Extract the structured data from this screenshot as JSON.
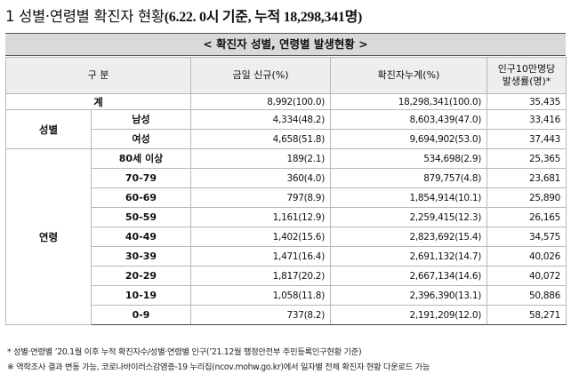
{
  "title": {
    "main": "1 성별·연령별 확진자 현황",
    "sub": "(6.22. 0시 기준, 누적 18,298,341명)"
  },
  "banner": "< 확진자 성별, 연령별 발생현황 >",
  "header": {
    "group": "구 분",
    "today": "금일 신규(%)",
    "cumulative": "확진자누계(%)",
    "rate": "인구10만명당 발생률(명)*"
  },
  "total": {
    "label": "계",
    "today": "8,992(100.0)",
    "cumulative": "18,298,341(100.0)",
    "rate": "35,435"
  },
  "sex": {
    "label": "성별",
    "rows": [
      {
        "label": "남성",
        "today": "4,334(48.2)",
        "cumulative": "8,603,439(47.0)",
        "rate": "33,416"
      },
      {
        "label": "여성",
        "today": "4,658(51.8)",
        "cumulative": "9,694,902(53.0)",
        "rate": "37,443"
      }
    ]
  },
  "age": {
    "label": "연령",
    "rows": [
      {
        "label": "80세 이상",
        "today": "189(2.1)",
        "cumulative": "534,698(2.9)",
        "rate": "25,365"
      },
      {
        "label": "70-79",
        "today": "360(4.0)",
        "cumulative": "879,757(4.8)",
        "rate": "23,681"
      },
      {
        "label": "60-69",
        "today": "797(8.9)",
        "cumulative": "1,854,914(10.1)",
        "rate": "25,890"
      },
      {
        "label": "50-59",
        "today": "1,161(12.9)",
        "cumulative": "2,259,415(12.3)",
        "rate": "26,165"
      },
      {
        "label": "40-49",
        "today": "1,402(15.6)",
        "cumulative": "2,823,692(15.4)",
        "rate": "34,575"
      },
      {
        "label": "30-39",
        "today": "1,471(16.4)",
        "cumulative": "2,691,132(14.7)",
        "rate": "40,026"
      },
      {
        "label": "20-29",
        "today": "1,817(20.2)",
        "cumulative": "2,667,134(14.6)",
        "rate": "40,072"
      },
      {
        "label": "10-19",
        "today": "1,058(11.8)",
        "cumulative": "2,396,390(13.1)",
        "rate": "50,886"
      },
      {
        "label": "0-9",
        "today": "737(8.2)",
        "cumulative": "2,191,209(12.0)",
        "rate": "58,271"
      }
    ]
  },
  "notes": [
    "* 성별·연령별 ’20.1월 이후 누적 확진자수/성별·연령별 인구(’21.12월 행정안전부 주민등록인구현황 기준)",
    "※ 역학조사 결과 변동 가능, 코로나바이러스감염증-19 누리집(ncov.mohw.go.kr)에서 일자별 전체 확진자 현황 다운로드 가능"
  ]
}
